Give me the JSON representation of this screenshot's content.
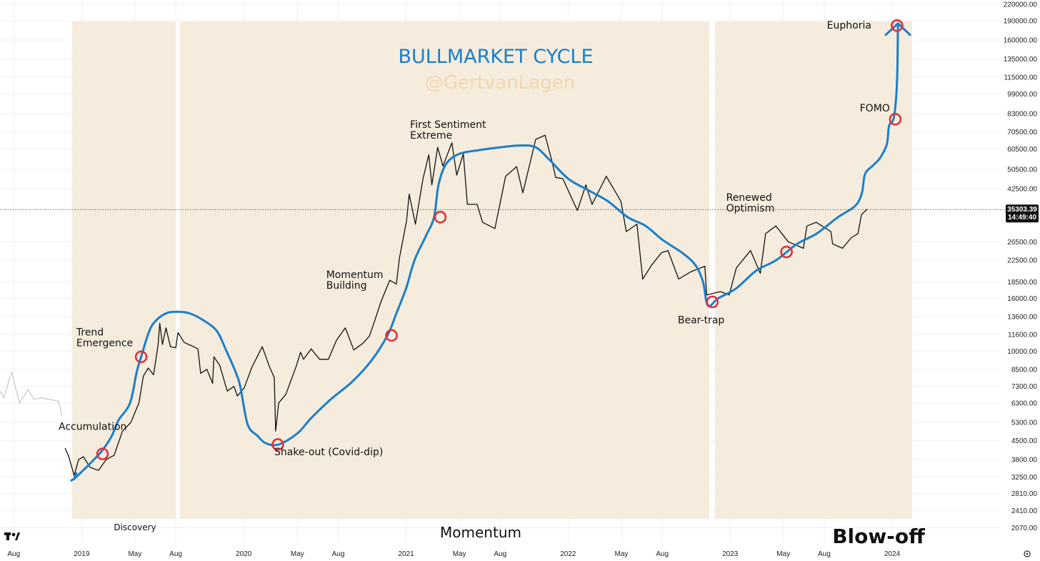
{
  "colors": {
    "band": "#f6ecdd",
    "price_line": "#111111",
    "history_line": "#bdbdbd",
    "cycle_curve": "#1a7fc9",
    "marker": "#e0313d",
    "title": "#1a7fc9",
    "watermark": "#f2d7ae",
    "price_tag_bg": "#111111"
  },
  "chart_data": {
    "type": "line",
    "title": "BULLMARKET CYCLE",
    "watermark": "@GertvanLagen",
    "y_scale": "log",
    "ylim": [
      1900,
      220000
    ],
    "xlim": [
      "2018-07-01",
      "2024-08-31"
    ],
    "y_ticks": [
      "220000.00",
      "190000.00",
      "160000.00",
      "135000.00",
      "115000.00",
      "99000.00",
      "83000.00",
      "70500.00",
      "60500.00",
      "50500.00",
      "42500.00",
      "35303.39",
      "26500.00",
      "22500.00",
      "18500.00",
      "16000.00",
      "13600.00",
      "11600.00",
      "10000.00",
      "8500.00",
      "7300.00",
      "6300.00",
      "5300.00",
      "4500.00",
      "3800.00",
      "3250.00",
      "2810.00",
      "2410.00",
      "2070.00"
    ],
    "x_ticks": [
      {
        "label": "Aug",
        "date": "2018-08-01"
      },
      {
        "label": "2019",
        "date": "2019-01-01"
      },
      {
        "label": "May",
        "date": "2019-05-01"
      },
      {
        "label": "Aug",
        "date": "2019-08-01"
      },
      {
        "label": "2020",
        "date": "2020-01-01"
      },
      {
        "label": "May",
        "date": "2020-05-01"
      },
      {
        "label": "Aug",
        "date": "2020-08-01"
      },
      {
        "label": "2021",
        "date": "2021-01-01"
      },
      {
        "label": "May",
        "date": "2021-05-01"
      },
      {
        "label": "Aug",
        "date": "2021-08-01"
      },
      {
        "label": "2022",
        "date": "2022-01-01"
      },
      {
        "label": "May",
        "date": "2022-05-01"
      },
      {
        "label": "Aug",
        "date": "2022-08-01"
      },
      {
        "label": "2023",
        "date": "2023-01-01"
      },
      {
        "label": "May",
        "date": "2023-05-01"
      },
      {
        "label": "Aug",
        "date": "2023-08-01"
      },
      {
        "label": "2024",
        "date": "2024-01-01"
      }
    ],
    "last_price": {
      "value": 35303.39,
      "label": "35303.39",
      "countdown": "14:49:40"
    },
    "phase_bands": [
      {
        "start": "2018-12-10",
        "end": "2019-08-01",
        "label": "Discovery"
      },
      {
        "start": "2019-08-10",
        "end": "2022-11-15",
        "label": "Momentum"
      },
      {
        "start": "2022-11-28",
        "end": "2024-02-15",
        "label": "Blow-off"
      }
    ],
    "series": [
      {
        "key": "history",
        "points": [
          [
            "2018-07-01",
            7000
          ],
          [
            "2018-07-10",
            6600
          ],
          [
            "2018-07-22",
            7800
          ],
          [
            "2018-07-28",
            8300
          ],
          [
            "2018-08-05",
            7200
          ],
          [
            "2018-08-14",
            6300
          ],
          [
            "2018-08-22",
            6600
          ],
          [
            "2018-09-03",
            7100
          ],
          [
            "2018-09-15",
            6500
          ],
          [
            "2018-10-01",
            6600
          ],
          [
            "2018-10-20",
            6500
          ],
          [
            "2018-11-10",
            6400
          ],
          [
            "2018-11-18",
            5600
          ]
        ]
      },
      {
        "key": "price",
        "points": [
          [
            "2018-11-25",
            4200
          ],
          [
            "2018-12-03",
            3900
          ],
          [
            "2018-12-15",
            3300
          ],
          [
            "2018-12-25",
            3800
          ],
          [
            "2019-01-05",
            3900
          ],
          [
            "2019-01-20",
            3550
          ],
          [
            "2019-02-08",
            3450
          ],
          [
            "2019-02-25",
            3800
          ],
          [
            "2019-03-15",
            3950
          ],
          [
            "2019-04-03",
            4900
          ],
          [
            "2019-04-22",
            5300
          ],
          [
            "2019-05-10",
            6300
          ],
          [
            "2019-05-20",
            8000
          ],
          [
            "2019-05-31",
            8600
          ],
          [
            "2019-06-12",
            8100
          ],
          [
            "2019-06-22",
            10500
          ],
          [
            "2019-06-26",
            12800
          ],
          [
            "2019-07-02",
            10600
          ],
          [
            "2019-07-10",
            12300
          ],
          [
            "2019-07-20",
            10400
          ],
          [
            "2019-08-01",
            10300
          ],
          [
            "2019-08-06",
            11800
          ],
          [
            "2019-08-20",
            10800
          ],
          [
            "2019-09-05",
            10500
          ],
          [
            "2019-09-20",
            10200
          ],
          [
            "2019-09-26",
            8200
          ],
          [
            "2019-10-10",
            8500
          ],
          [
            "2019-10-23",
            7500
          ],
          [
            "2019-10-26",
            9500
          ],
          [
            "2019-11-08",
            8800
          ],
          [
            "2019-11-25",
            7000
          ],
          [
            "2019-12-10",
            7300
          ],
          [
            "2019-12-18",
            6700
          ],
          [
            "2020-01-02",
            7200
          ],
          [
            "2020-01-20",
            8700
          ],
          [
            "2020-02-12",
            10400
          ],
          [
            "2020-02-28",
            8700
          ],
          [
            "2020-03-10",
            7900
          ],
          [
            "2020-03-13",
            4900
          ],
          [
            "2020-03-20",
            6300
          ],
          [
            "2020-04-05",
            6800
          ],
          [
            "2020-04-29",
            8800
          ],
          [
            "2020-05-08",
            9900
          ],
          [
            "2020-05-15",
            9300
          ],
          [
            "2020-06-01",
            10200
          ],
          [
            "2020-06-20",
            9300
          ],
          [
            "2020-07-10",
            9300
          ],
          [
            "2020-07-28",
            11000
          ],
          [
            "2020-08-17",
            12300
          ],
          [
            "2020-09-05",
            10100
          ],
          [
            "2020-09-25",
            10700
          ],
          [
            "2020-10-10",
            11400
          ],
          [
            "2020-10-21",
            12900
          ],
          [
            "2020-11-05",
            15500
          ],
          [
            "2020-11-25",
            18800
          ],
          [
            "2020-12-10",
            18200
          ],
          [
            "2020-12-17",
            23000
          ],
          [
            "2021-01-02",
            32000
          ],
          [
            "2021-01-08",
            40500
          ],
          [
            "2021-01-22",
            31000
          ],
          [
            "2021-02-08",
            46500
          ],
          [
            "2021-02-21",
            57500
          ],
          [
            "2021-02-28",
            44000
          ],
          [
            "2021-03-13",
            61500
          ],
          [
            "2021-03-25",
            52000
          ],
          [
            "2021-04-14",
            64000
          ],
          [
            "2021-04-25",
            48000
          ],
          [
            "2021-05-10",
            58000
          ],
          [
            "2021-05-19",
            37000
          ],
          [
            "2021-06-10",
            37000
          ],
          [
            "2021-06-22",
            31500
          ],
          [
            "2021-07-20",
            29800
          ],
          [
            "2021-08-13",
            47500
          ],
          [
            "2021-09-07",
            51800
          ],
          [
            "2021-09-21",
            41000
          ],
          [
            "2021-10-20",
            66000
          ],
          [
            "2021-11-10",
            68500
          ],
          [
            "2021-11-26",
            54000
          ],
          [
            "2021-12-04",
            47000
          ],
          [
            "2021-12-20",
            46500
          ],
          [
            "2022-01-22",
            35000
          ],
          [
            "2022-02-10",
            44000
          ],
          [
            "2022-02-24",
            37000
          ],
          [
            "2022-03-28",
            47500
          ],
          [
            "2022-04-30",
            38000
          ],
          [
            "2022-05-12",
            29000
          ],
          [
            "2022-06-05",
            31000
          ],
          [
            "2022-06-18",
            19000
          ],
          [
            "2022-07-08",
            21500
          ],
          [
            "2022-07-30",
            24000
          ],
          [
            "2022-08-14",
            24500
          ],
          [
            "2022-09-07",
            19000
          ],
          [
            "2022-10-05",
            20300
          ],
          [
            "2022-11-05",
            21300
          ],
          [
            "2022-11-09",
            16500
          ],
          [
            "2022-12-10",
            17000
          ],
          [
            "2022-12-30",
            16500
          ],
          [
            "2023-01-15",
            21000
          ],
          [
            "2023-02-16",
            24500
          ],
          [
            "2023-03-10",
            20000
          ],
          [
            "2023-03-22",
            28500
          ],
          [
            "2023-04-14",
            30500
          ],
          [
            "2023-05-12",
            26500
          ],
          [
            "2023-06-15",
            25000
          ],
          [
            "2023-06-23",
            30500
          ],
          [
            "2023-07-14",
            31500
          ],
          [
            "2023-08-16",
            29000
          ],
          [
            "2023-08-20",
            26000
          ],
          [
            "2023-09-11",
            25000
          ],
          [
            "2023-10-01",
            27500
          ],
          [
            "2023-10-16",
            28500
          ],
          [
            "2023-10-24",
            33800
          ],
          [
            "2023-11-05",
            35303
          ]
        ]
      },
      {
        "key": "cycle",
        "points": [
          [
            "2018-12-15",
            3200
          ],
          [
            "2019-01-15",
            3600
          ],
          [
            "2019-02-15",
            4100
          ],
          [
            "2019-03-10",
            4700
          ],
          [
            "2019-03-25",
            5400
          ],
          [
            "2019-04-20",
            6300
          ],
          [
            "2019-05-05",
            8300
          ],
          [
            "2019-05-15",
            9500
          ],
          [
            "2019-06-01",
            11800
          ],
          [
            "2019-06-15",
            13000
          ],
          [
            "2019-07-10",
            14000
          ],
          [
            "2019-08-05",
            14200
          ],
          [
            "2019-09-01",
            14000
          ],
          [
            "2019-10-01",
            13200
          ],
          [
            "2019-11-01",
            12000
          ],
          [
            "2019-11-20",
            10300
          ],
          [
            "2019-12-15",
            8200
          ],
          [
            "2019-12-25",
            7200
          ],
          [
            "2020-01-10",
            5200
          ],
          [
            "2020-02-01",
            4700
          ],
          [
            "2020-02-20",
            4400
          ],
          [
            "2020-03-20",
            4350
          ],
          [
            "2020-05-01",
            4800
          ],
          [
            "2020-06-01",
            5500
          ],
          [
            "2020-07-15",
            6500
          ],
          [
            "2020-09-01",
            7600
          ],
          [
            "2020-10-15",
            9200
          ],
          [
            "2020-11-20",
            11500
          ],
          [
            "2020-12-10",
            14000
          ],
          [
            "2021-01-01",
            17500
          ],
          [
            "2021-01-20",
            22500
          ],
          [
            "2021-02-15",
            28000
          ],
          [
            "2021-03-05",
            33000
          ],
          [
            "2021-03-15",
            44000
          ],
          [
            "2021-04-01",
            53000
          ],
          [
            "2021-05-01",
            58000
          ],
          [
            "2021-06-15",
            60000
          ],
          [
            "2021-08-01",
            61500
          ],
          [
            "2021-09-15",
            62500
          ],
          [
            "2021-10-20",
            61500
          ],
          [
            "2021-11-20",
            55000
          ],
          [
            "2022-01-01",
            46500
          ],
          [
            "2022-02-15",
            42000
          ],
          [
            "2022-04-01",
            38000
          ],
          [
            "2022-05-15",
            33000
          ],
          [
            "2022-06-25",
            30500
          ],
          [
            "2022-08-01",
            27000
          ],
          [
            "2022-09-15",
            24000
          ],
          [
            "2022-10-15",
            21500
          ],
          [
            "2022-11-01",
            18500
          ],
          [
            "2022-11-12",
            15000
          ],
          [
            "2022-12-05",
            16000
          ],
          [
            "2023-01-15",
            17500
          ],
          [
            "2023-03-01",
            20500
          ],
          [
            "2023-04-15",
            22500
          ],
          [
            "2023-06-01",
            26000
          ],
          [
            "2023-07-15",
            28500
          ],
          [
            "2023-09-01",
            33000
          ],
          [
            "2023-10-10",
            36500
          ],
          [
            "2023-10-25",
            41000
          ],
          [
            "2023-11-01",
            48500
          ],
          [
            "2023-11-20",
            52500
          ],
          [
            "2023-12-05",
            56000
          ],
          [
            "2023-12-20",
            63000
          ],
          [
            "2023-12-25",
            74500
          ],
          [
            "2024-01-05",
            80500
          ],
          [
            "2024-01-12",
            110000
          ],
          [
            "2024-01-14",
            182000
          ]
        ]
      }
    ],
    "markers": [
      {
        "date": "2019-02-17",
        "value": 4000
      },
      {
        "date": "2019-05-15",
        "value": 9500
      },
      {
        "date": "2020-03-18",
        "value": 4350
      },
      {
        "date": "2020-11-29",
        "value": 11500
      },
      {
        "date": "2021-03-19",
        "value": 33000
      },
      {
        "date": "2022-11-22",
        "value": 15500
      },
      {
        "date": "2023-05-08",
        "value": 24200
      },
      {
        "date": "2024-01-08",
        "value": 79000
      },
      {
        "date": "2024-01-12",
        "value": 182000
      }
    ],
    "annotations": [
      {
        "lines": [
          "Accumulation"
        ],
        "date": "2018-11-10",
        "value": 4950,
        "size": 14
      },
      {
        "lines": [
          "Trend",
          "Emergence"
        ],
        "date": "2018-12-20",
        "value": 11500,
        "size": 14
      },
      {
        "lines": [
          "Shake-out (Covid-dip)"
        ],
        "date": "2020-03-10",
        "value": 3950,
        "size": 14
      },
      {
        "lines": [
          "Momentum",
          "Building"
        ],
        "date": "2020-07-05",
        "value": 19200,
        "size": 14
      },
      {
        "lines": [
          "First Sentiment",
          "Extreme"
        ],
        "date": "2021-01-10",
        "value": 73000,
        "size": 14
      },
      {
        "lines": [
          "Bear-trap"
        ],
        "date": "2022-09-05",
        "value": 12800,
        "size": 14
      },
      {
        "lines": [
          "Renewed",
          "Optimism"
        ],
        "date": "2022-12-23",
        "value": 38200,
        "size": 14
      },
      {
        "lines": [
          "FOMO"
        ],
        "date": "2023-10-20",
        "value": 84500,
        "size": 14
      },
      {
        "lines": [
          "Euphoria"
        ],
        "date": "2023-08-07",
        "value": 177000,
        "size": 14
      }
    ]
  }
}
